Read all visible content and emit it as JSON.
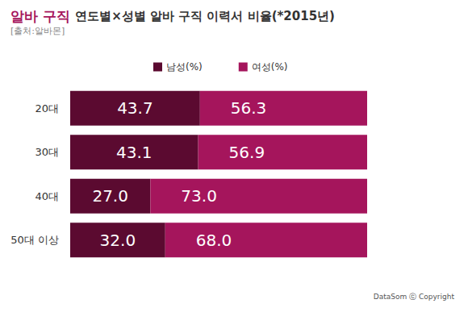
{
  "chart_data": {
    "type": "bar",
    "title": "알바 구직 연도별×성별 알바 구직 이력서 비율(*2015년)",
    "subtitle": "[출처:알바몬]",
    "annotations": [
      "DataSom ⓒ Copyright"
    ],
    "orientation": "horizontal",
    "stacked": true,
    "data_labels": true,
    "tick_labels": "y",
    "grid": false,
    "legend": "top",
    "categories": [
      "20대",
      "30대",
      "40대",
      "50대 이상"
    ],
    "series": [
      {
        "name": "남성(%)",
        "color": "#5b0a30",
        "values": [
          43.7,
          43.1,
          27.0,
          32.0
        ],
        "value_labels": [
          "43.7",
          "43.1",
          "27.0",
          "32.0"
        ]
      },
      {
        "name": "여성(%)",
        "color": "#a5155c",
        "values": [
          56.3,
          56.9,
          73.0,
          68.0
        ],
        "value_labels": [
          "56.3",
          "56.9",
          "73.0",
          "68.0"
        ]
      }
    ],
    "xlim": [
      0,
      100
    ],
    "xticks": [
      0,
      100
    ]
  }
}
